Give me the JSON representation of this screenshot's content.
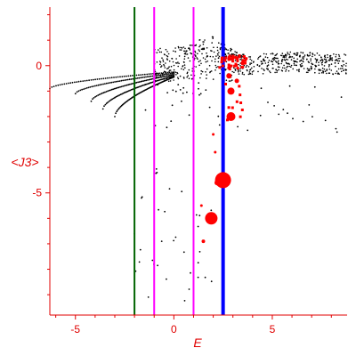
{
  "chart_data": {
    "type": "scatter",
    "title": "",
    "xlabel": "E",
    "ylabel": "<J3>",
    "xlim": [
      -6.3,
      8.8
    ],
    "ylim": [
      -9.8,
      2.3
    ],
    "grid": false,
    "legend": "none",
    "xticks": [
      -5,
      0,
      5
    ],
    "yticks": [
      0,
      -5
    ],
    "x_tick_labels": [
      "-5",
      "0",
      "5"
    ],
    "y_tick_labels": [
      "0",
      "-5"
    ],
    "colors": {
      "axis": "#e00000",
      "points_black": "#000000",
      "points_red": "#ff0000",
      "line_green": "#006400",
      "line_magenta": "#ff00ff",
      "line_blue": "#0000ff"
    },
    "vertical_lines": [
      {
        "x": -2.0,
        "color": "#006400",
        "width": 2
      },
      {
        "x": -1.0,
        "color": "#ff00ff",
        "width": 2
      },
      {
        "x": 1.0,
        "color": "#ff00ff",
        "width": 2
      },
      {
        "x": 2.5,
        "color": "#0000ff",
        "width": 4
      }
    ],
    "branches": [
      {
        "x_start": -6.3,
        "y_start": -0.9,
        "x_end": 0.0,
        "y_end": -0.25
      },
      {
        "x_start": -5.0,
        "y_start": -1.1,
        "x_end": 0.0,
        "y_end": -0.3
      },
      {
        "x_start": -4.2,
        "y_start": -1.4,
        "x_end": 0.0,
        "y_end": -0.35
      },
      {
        "x_start": -3.6,
        "y_start": -1.7,
        "x_end": 0.0,
        "y_end": -0.4
      },
      {
        "x_start": -3.0,
        "y_start": -2.0,
        "x_end": 0.0,
        "y_end": -0.45
      }
    ],
    "red_points": [
      {
        "x": 2.5,
        "y": -4.5,
        "size": 9
      },
      {
        "x": 1.9,
        "y": -6.0,
        "size": 7
      },
      {
        "x": 2.9,
        "y": -2.0,
        "size": 5
      },
      {
        "x": 2.9,
        "y": -1.0,
        "size": 4
      },
      {
        "x": 2.2,
        "y": -4.6,
        "size": 3
      },
      {
        "x": 2.8,
        "y": -0.4,
        "size": 3
      },
      {
        "x": 3.2,
        "y": -0.6,
        "size": 2.5
      },
      {
        "x": 3.5,
        "y": 0.1,
        "size": 2.5
      },
      {
        "x": 3.0,
        "y": 0.3,
        "size": 2
      },
      {
        "x": 1.5,
        "y": -6.9,
        "size": 2
      },
      {
        "x": 2.0,
        "y": -2.7,
        "size": 1.5
      },
      {
        "x": 2.1,
        "y": -3.4,
        "size": 1.5
      },
      {
        "x": 1.4,
        "y": -5.5,
        "size": 1.5
      }
    ]
  }
}
